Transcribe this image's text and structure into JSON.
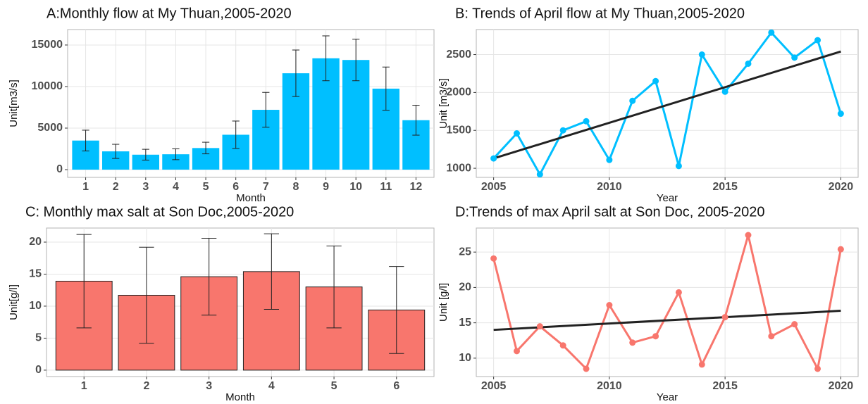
{
  "chart_data": [
    {
      "type": "bar",
      "title": "A:Monthly flow at My Thuan,2005-2020",
      "x_label": "Month",
      "y_label": "Unit[m3/s]",
      "categories": [
        "1",
        "2",
        "3",
        "4",
        "5",
        "6",
        "7",
        "8",
        "9",
        "10",
        "11",
        "12"
      ],
      "values": [
        3500,
        2200,
        1800,
        1850,
        2600,
        4200,
        7200,
        11600,
        13400,
        13200,
        9750,
        5950
      ],
      "errors": [
        1250,
        850,
        650,
        650,
        700,
        1650,
        2100,
        2800,
        2700,
        2500,
        2600,
        1800
      ],
      "color": "#00bfff",
      "ylim": [
        -930,
        16860
      ],
      "yticks": [
        0,
        5000,
        10000,
        15000
      ],
      "grid": true
    },
    {
      "type": "line",
      "title": "B: Trends of April flow at My Thuan,2005-2020",
      "x_label": "Year",
      "y_label": "Unit [m3/s]",
      "x": [
        2005,
        2006,
        2007,
        2008,
        2009,
        2010,
        2011,
        2012,
        2013,
        2014,
        2015,
        2016,
        2017,
        2018,
        2019,
        2020
      ],
      "values": [
        1130,
        1460,
        920,
        1500,
        1620,
        1110,
        1890,
        2150,
        1030,
        2500,
        2010,
        2380,
        2790,
        2460,
        2690,
        1720
      ],
      "color": "#00bfff",
      "trend": {
        "x": [
          2005,
          2020
        ],
        "values": [
          1130,
          2540
        ],
        "color": "#222222"
      },
      "xlim": [
        2004.25,
        2020.75
      ],
      "xticks": [
        2005,
        2010,
        2015,
        2020
      ],
      "ylim": [
        880,
        2830
      ],
      "yticks": [
        1000,
        1500,
        2000,
        2500
      ],
      "grid": true
    },
    {
      "type": "bar",
      "title": "C: Monthly max salt at Son Doc,2005-2020",
      "x_label": "Month",
      "y_label": "Unit[g/l]",
      "categories": [
        "1",
        "2",
        "3",
        "4",
        "5",
        "6"
      ],
      "values": [
        13.9,
        11.7,
        14.6,
        15.4,
        13.0,
        9.4
      ],
      "errors": [
        7.3,
        7.5,
        6.0,
        5.9,
        6.4,
        6.8
      ],
      "color": "#f8766d",
      "ylim": [
        -1,
        22.2
      ],
      "yticks": [
        0,
        5,
        10,
        15,
        20
      ],
      "grid": true
    },
    {
      "type": "line",
      "title": "D:Trends of max April salt at Son Doc, 2005-2020",
      "x_label": "Year",
      "y_label": "Unit [g/l]",
      "x": [
        2005,
        2006,
        2007,
        2008,
        2009,
        2010,
        2011,
        2012,
        2013,
        2014,
        2015,
        2016,
        2017,
        2018,
        2019,
        2020
      ],
      "values": [
        24.1,
        11.0,
        14.5,
        11.8,
        8.5,
        17.5,
        12.2,
        13.1,
        19.3,
        9.1,
        15.8,
        27.4,
        13.1,
        14.8,
        8.5,
        25.4
      ],
      "color": "#f8766d",
      "trend": {
        "x": [
          2005,
          2020
        ],
        "values": [
          14.0,
          16.7
        ],
        "color": "#222222"
      },
      "xlim": [
        2004.25,
        2020.75
      ],
      "xticks": [
        2005,
        2010,
        2015,
        2020
      ],
      "ylim": [
        7.4,
        28.4
      ],
      "yticks": [
        10,
        15,
        20,
        25
      ],
      "grid": true
    }
  ]
}
